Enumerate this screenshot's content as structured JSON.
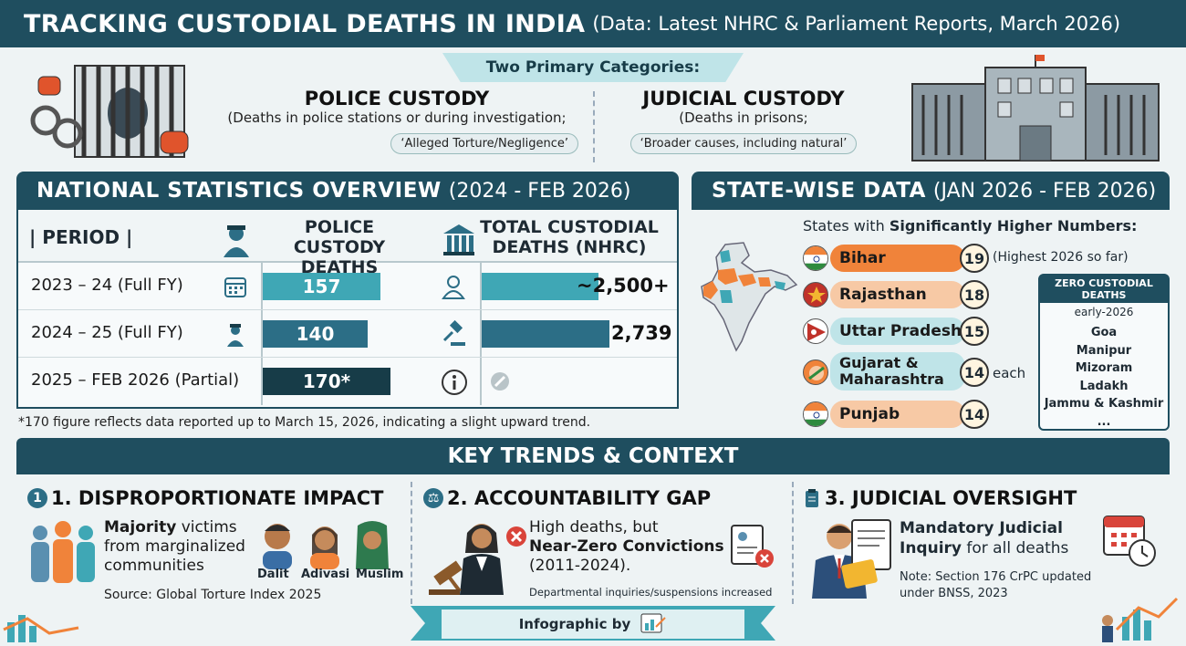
{
  "header": {
    "title": "TRACKING CUSTODIAL DEATHS IN INDIA",
    "subtitle": "(Data: Latest NHRC & Parliament Reports, March 2026)"
  },
  "categories": {
    "banner": "Two Primary Categories:",
    "police": {
      "title": "POLICE CUSTODY",
      "desc": "(Deaths in police stations or during investigation;",
      "tag": "‘Alleged Torture/Negligence’"
    },
    "judicial": {
      "title": "JUDICIAL CUSTODY",
      "desc": "(Deaths in prisons;",
      "tag": "‘Broader causes, including natural’"
    }
  },
  "national": {
    "title": "NATIONAL STATISTICS OVERVIEW",
    "range": "(2024 - FEB 2026)",
    "col_period": "PERIOD",
    "col_police": "POLICE CUSTODY DEATHS",
    "col_total": "TOTAL CUSTODIAL DEATHS (NHRC)",
    "rows": [
      {
        "period": "2023 – 24 (Full FY)",
        "police": "157",
        "total": "~2,500+",
        "police_value": 157,
        "total_value": 2500
      },
      {
        "period": "2024 – 25 (Full FY)",
        "police": "140",
        "total": "2,739",
        "police_value": 140,
        "total_value": 2739
      },
      {
        "period": "2025 – FEB 2026 (Partial)",
        "police": "170*",
        "total": "",
        "police_value": 170,
        "total_value": 0
      }
    ],
    "footnote": "*170 figure reflects data reported up to March 15, 2026, indicating a slight upward trend."
  },
  "statewise": {
    "title": "STATE-WISE DATA",
    "range": "(JAN 2026 - FEB 2026)",
    "intro_plain": "States with ",
    "intro_bold": "Significantly Higher Numbers:",
    "states": [
      {
        "name": "Bihar",
        "count": "19",
        "note": "(Highest 2026 so far)"
      },
      {
        "name": "Rajasthan",
        "count": "18",
        "note": ""
      },
      {
        "name": "Uttar Pradesh",
        "count": "15",
        "note": ""
      },
      {
        "name": "Gujarat & Maharashtra",
        "count": "14",
        "note": "each"
      },
      {
        "name": "Punjab",
        "count": "14",
        "note": ""
      }
    ],
    "zero": {
      "title": "ZERO CUSTODIAL DEATHS",
      "subtitle": "early-2026",
      "items": [
        "Goa",
        "Manipur",
        "Mizoram",
        "Ladakh",
        "Jammu & Kashmir",
        "..."
      ]
    }
  },
  "trends": {
    "title": "KEY TRENDS & CONTEXT",
    "t1": {
      "num": "1",
      "title": "1. DISPROPORTIONATE IMPACT",
      "bold": "Majority",
      "text1": " victims",
      "text2": "from marginalized",
      "text3": "communities",
      "groups": [
        "Dalit",
        "Adivasi",
        "Muslim"
      ],
      "source": "Source: Global Torture Index 2025"
    },
    "t2": {
      "title": "2. ACCOUNTABILITY GAP",
      "line1": "High deaths, but",
      "bold": "Near-Zero Convictions",
      "line3": "(2011-2024).",
      "note": "Departmental inquiries/suspensions increased"
    },
    "t3": {
      "title": "3. JUDICIAL OVERSIGHT",
      "bold1": "Mandatory Judicial",
      "bold2": "Inquiry",
      "rest": " for all deaths",
      "note1": "Note: Section 176 CrPC updated",
      "note2": "under BNSS, 2023"
    }
  },
  "footer": {
    "credit": "Infographic by"
  },
  "colors": {
    "primary": "#1f4e5f",
    "teal": "#3fa7b5",
    "orange": "#f0833a",
    "peach": "#f7c9a5",
    "lightteal": "#bfe4e8"
  }
}
